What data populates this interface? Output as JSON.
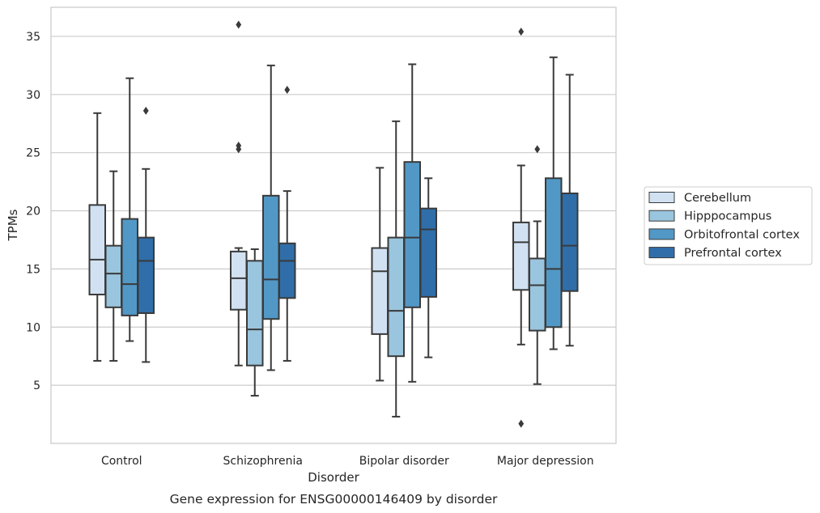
{
  "chart_data": {
    "type": "box",
    "xlabel": "Disorder",
    "ylabel": "TPMs",
    "caption": "Gene expression for ENSG00000146409 by disorder",
    "ylim": [
      0,
      37.5
    ],
    "yticks": [
      5,
      10,
      15,
      20,
      25,
      30,
      35
    ],
    "grid": "horizontal",
    "legend_position": "right",
    "categories": [
      "Control",
      "Schizophrenia",
      "Bipolar disorder",
      "Major depression"
    ],
    "series": [
      {
        "name": "Cerebellum",
        "color": "#d1e1f2",
        "boxes": [
          {
            "whisker_low": 7.1,
            "q1": 12.8,
            "median": 15.8,
            "q3": 20.5,
            "whisker_high": 28.4,
            "outliers": []
          },
          {
            "whisker_low": 6.7,
            "q1": 11.5,
            "median": 14.2,
            "q3": 16.5,
            "whisker_high": 16.8,
            "outliers": [
              25.3,
              25.6,
              36.0
            ]
          },
          {
            "whisker_low": 5.4,
            "q1": 9.4,
            "median": 14.8,
            "q3": 16.8,
            "whisker_high": 23.7,
            "outliers": []
          },
          {
            "whisker_low": 8.5,
            "q1": 13.2,
            "median": 17.3,
            "q3": 19.0,
            "whisker_high": 23.9,
            "outliers": [
              1.7,
              35.4
            ]
          }
        ]
      },
      {
        "name": "Hipppocampus",
        "color": "#9ac5de",
        "boxes": [
          {
            "whisker_low": 7.1,
            "q1": 11.7,
            "median": 14.6,
            "q3": 17.0,
            "whisker_high": 23.4,
            "outliers": []
          },
          {
            "whisker_low": 4.1,
            "q1": 6.7,
            "median": 9.8,
            "q3": 15.7,
            "whisker_high": 16.7,
            "outliers": []
          },
          {
            "whisker_low": 2.3,
            "q1": 7.5,
            "median": 11.4,
            "q3": 17.7,
            "whisker_high": 27.7,
            "outliers": []
          },
          {
            "whisker_low": 5.1,
            "q1": 9.7,
            "median": 13.6,
            "q3": 15.9,
            "whisker_high": 19.1,
            "outliers": [
              25.3
            ]
          }
        ]
      },
      {
        "name": "Orbitofrontal cortex",
        "color": "#5298c6",
        "boxes": [
          {
            "whisker_low": 8.8,
            "q1": 11.0,
            "median": 13.7,
            "q3": 19.3,
            "whisker_high": 31.4,
            "outliers": []
          },
          {
            "whisker_low": 6.3,
            "q1": 10.7,
            "median": 14.1,
            "q3": 21.3,
            "whisker_high": 32.5,
            "outliers": []
          },
          {
            "whisker_low": 5.3,
            "q1": 11.7,
            "median": 17.7,
            "q3": 24.2,
            "whisker_high": 32.6,
            "outliers": []
          },
          {
            "whisker_low": 8.1,
            "q1": 10.0,
            "median": 15.0,
            "q3": 22.8,
            "whisker_high": 33.2,
            "outliers": []
          }
        ]
      },
      {
        "name": "Prefrontal cortex",
        "color": "#2f6ea9",
        "boxes": [
          {
            "whisker_low": 7.0,
            "q1": 11.2,
            "median": 15.7,
            "q3": 17.7,
            "whisker_high": 23.6,
            "outliers": [
              28.6
            ]
          },
          {
            "whisker_low": 7.1,
            "q1": 12.5,
            "median": 15.7,
            "q3": 17.2,
            "whisker_high": 21.7,
            "outliers": [
              30.4
            ]
          },
          {
            "whisker_low": 7.4,
            "q1": 12.6,
            "median": 18.4,
            "q3": 20.2,
            "whisker_high": 22.8,
            "outliers": []
          },
          {
            "whisker_low": 8.4,
            "q1": 13.1,
            "median": 17.0,
            "q3": 21.5,
            "whisker_high": 31.7,
            "outliers": []
          }
        ]
      }
    ]
  }
}
